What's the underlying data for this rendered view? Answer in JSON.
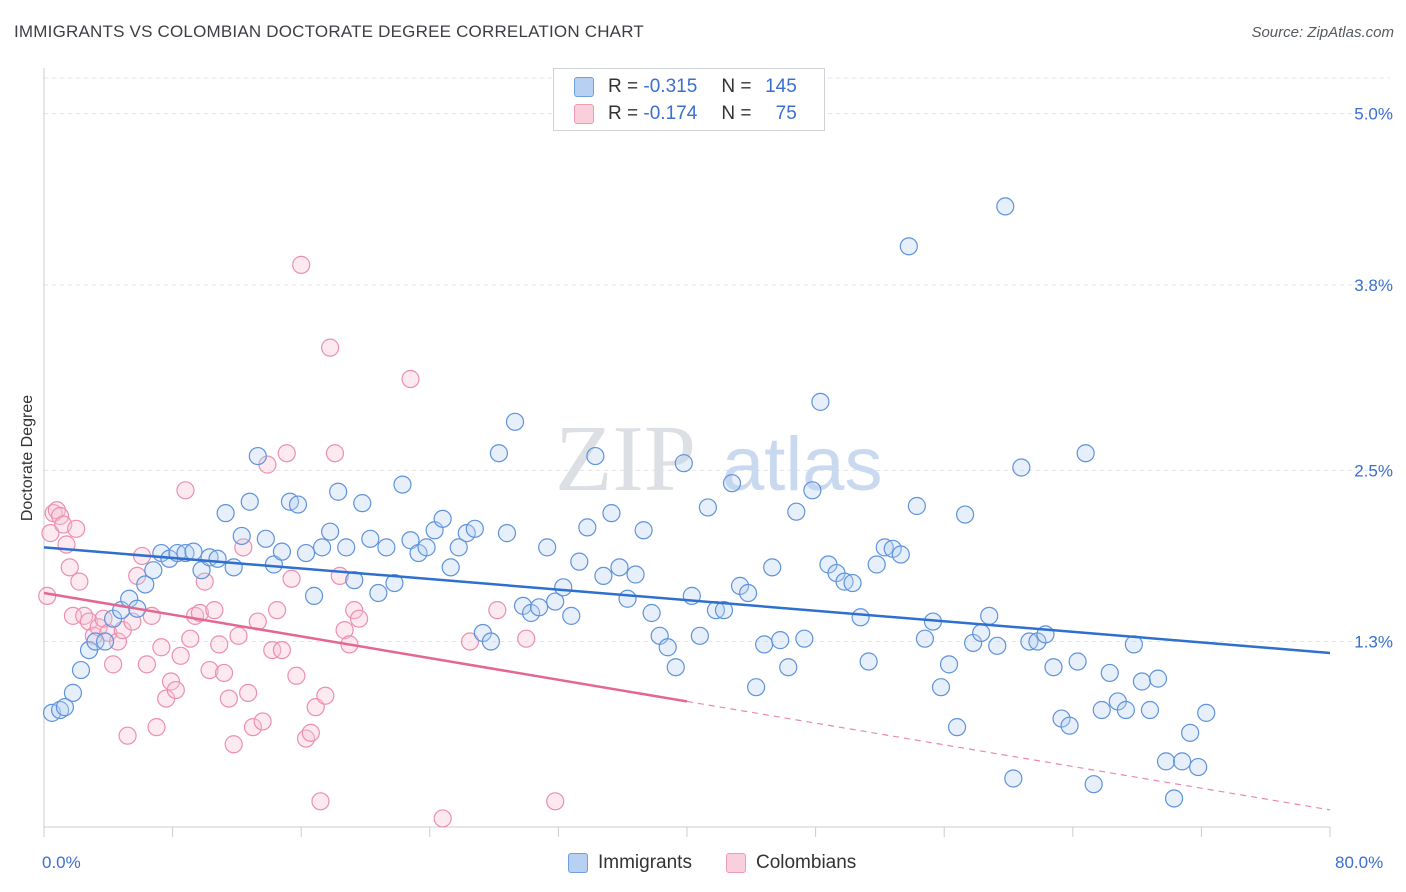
{
  "title": "IMMIGRANTS VS COLOMBIAN DOCTORATE DEGREE CORRELATION CHART",
  "source": "Source: ZipAtlas.com",
  "watermark": {
    "zip": "ZIP",
    "atlas": "atlas"
  },
  "legend": {
    "rows": [
      {
        "r_label": "R =",
        "r_value": "-0.315",
        "n_label": "N =",
        "n_value": "145",
        "color": "#6f9fe0"
      },
      {
        "r_label": "R =",
        "r_value": "-0.174",
        "n_label": "N =",
        "n_value": "75",
        "color": "#f09ab5"
      }
    ]
  },
  "bottom_legend": [
    {
      "label": "Immigrants",
      "color": "#6f9fe0"
    },
    {
      "label": "Colombians",
      "color": "#f09ab5"
    }
  ],
  "chart_data": {
    "type": "scatter",
    "ylabel": "Doctorate Degree",
    "xlim": [
      0,
      80
    ],
    "ylim": [
      0,
      5.25
    ],
    "x_tick_labels": [
      "0.0%",
      "80.0%"
    ],
    "y_ticks": [
      1.3,
      2.5,
      3.8,
      5.0
    ],
    "y_tick_labels": [
      "1.3%",
      "2.5%",
      "3.8%",
      "5.0%"
    ],
    "series": [
      {
        "name": "Immigrants",
        "color": "#6f9fe0",
        "trend": {
          "x": [
            0,
            80
          ],
          "y": [
            1.96,
            1.22
          ]
        },
        "points": [
          [
            0.5,
            0.8
          ],
          [
            1.0,
            0.82
          ],
          [
            1.3,
            0.84
          ],
          [
            1.8,
            0.94
          ],
          [
            2.3,
            1.1
          ],
          [
            2.8,
            1.24
          ],
          [
            3.2,
            1.3
          ],
          [
            3.8,
            1.3
          ],
          [
            4.3,
            1.46
          ],
          [
            4.8,
            1.52
          ],
          [
            5.3,
            1.6
          ],
          [
            5.8,
            1.53
          ],
          [
            6.3,
            1.7
          ],
          [
            6.8,
            1.8
          ],
          [
            7.3,
            1.92
          ],
          [
            7.8,
            1.88
          ],
          [
            8.3,
            1.92
          ],
          [
            8.8,
            1.92
          ],
          [
            9.3,
            1.93
          ],
          [
            9.8,
            1.8
          ],
          [
            10.3,
            1.89
          ],
          [
            10.8,
            1.88
          ],
          [
            11.3,
            2.2
          ],
          [
            11.8,
            1.82
          ],
          [
            12.3,
            2.04
          ],
          [
            12.8,
            2.28
          ],
          [
            13.3,
            2.6
          ],
          [
            13.8,
            2.02
          ],
          [
            14.3,
            1.84
          ],
          [
            14.8,
            1.93
          ],
          [
            15.3,
            2.28
          ],
          [
            15.8,
            2.26
          ],
          [
            16.3,
            1.92
          ],
          [
            16.8,
            1.62
          ],
          [
            17.3,
            1.96
          ],
          [
            17.8,
            2.07
          ],
          [
            18.3,
            2.35
          ],
          [
            18.8,
            1.96
          ],
          [
            19.3,
            1.73
          ],
          [
            19.8,
            2.27
          ],
          [
            20.3,
            2.02
          ],
          [
            20.8,
            1.64
          ],
          [
            21.3,
            1.96
          ],
          [
            21.8,
            1.71
          ],
          [
            22.3,
            2.4
          ],
          [
            22.8,
            2.01
          ],
          [
            23.3,
            1.92
          ],
          [
            23.8,
            1.96
          ],
          [
            24.3,
            2.08
          ],
          [
            24.8,
            2.16
          ],
          [
            25.3,
            1.82
          ],
          [
            25.8,
            1.96
          ],
          [
            26.3,
            2.06
          ],
          [
            26.8,
            2.09
          ],
          [
            27.3,
            1.36
          ],
          [
            27.8,
            1.3
          ],
          [
            28.3,
            2.62
          ],
          [
            28.8,
            2.06
          ],
          [
            29.3,
            2.84
          ],
          [
            29.8,
            1.55
          ],
          [
            30.3,
            1.5
          ],
          [
            30.8,
            1.54
          ],
          [
            31.3,
            1.96
          ],
          [
            31.8,
            1.58
          ],
          [
            32.3,
            1.68
          ],
          [
            32.8,
            1.48
          ],
          [
            33.3,
            1.86
          ],
          [
            33.8,
            2.1
          ],
          [
            34.3,
            2.6
          ],
          [
            34.8,
            1.76
          ],
          [
            35.3,
            2.2
          ],
          [
            35.8,
            1.82
          ],
          [
            36.3,
            1.6
          ],
          [
            36.8,
            1.77
          ],
          [
            37.3,
            2.08
          ],
          [
            37.8,
            1.5
          ],
          [
            38.3,
            1.34
          ],
          [
            38.8,
            1.26
          ],
          [
            39.3,
            1.12
          ],
          [
            39.8,
            2.55
          ],
          [
            40.3,
            1.62
          ],
          [
            40.8,
            1.34
          ],
          [
            41.3,
            2.24
          ],
          [
            41.8,
            1.52
          ],
          [
            42.3,
            1.52
          ],
          [
            42.8,
            2.41
          ],
          [
            43.3,
            1.69
          ],
          [
            43.8,
            1.64
          ],
          [
            44.3,
            0.98
          ],
          [
            44.8,
            1.28
          ],
          [
            45.3,
            1.82
          ],
          [
            45.8,
            1.31
          ],
          [
            46.3,
            1.12
          ],
          [
            46.8,
            2.21
          ],
          [
            47.3,
            1.32
          ],
          [
            47.8,
            2.36
          ],
          [
            48.3,
            2.98
          ],
          [
            48.8,
            1.84
          ],
          [
            49.3,
            1.78
          ],
          [
            49.8,
            1.72
          ],
          [
            50.3,
            1.71
          ],
          [
            50.8,
            1.47
          ],
          [
            51.3,
            1.16
          ],
          [
            51.8,
            1.84
          ],
          [
            52.3,
            1.96
          ],
          [
            52.8,
            1.95
          ],
          [
            53.3,
            1.91
          ],
          [
            53.8,
            4.07
          ],
          [
            54.3,
            2.25
          ],
          [
            54.8,
            1.32
          ],
          [
            55.3,
            1.44
          ],
          [
            55.8,
            0.98
          ],
          [
            56.3,
            1.14
          ],
          [
            56.8,
            0.7
          ],
          [
            57.3,
            2.19
          ],
          [
            57.8,
            1.29
          ],
          [
            58.3,
            1.36
          ],
          [
            58.8,
            1.48
          ],
          [
            59.3,
            1.27
          ],
          [
            59.8,
            4.35
          ],
          [
            60.3,
            0.34
          ],
          [
            60.8,
            2.52
          ],
          [
            61.3,
            1.3
          ],
          [
            61.8,
            1.3
          ],
          [
            62.3,
            1.35
          ],
          [
            62.8,
            1.12
          ],
          [
            63.3,
            0.76
          ],
          [
            63.8,
            0.71
          ],
          [
            64.3,
            1.16
          ],
          [
            64.8,
            2.62
          ],
          [
            65.3,
            0.3
          ],
          [
            65.8,
            0.82
          ],
          [
            66.3,
            1.08
          ],
          [
            66.8,
            0.88
          ],
          [
            67.3,
            0.82
          ],
          [
            67.8,
            1.28
          ],
          [
            68.3,
            1.02
          ],
          [
            68.8,
            0.82
          ],
          [
            69.3,
            1.04
          ],
          [
            69.8,
            0.46
          ],
          [
            70.3,
            0.2
          ],
          [
            70.8,
            0.46
          ],
          [
            71.3,
            0.66
          ],
          [
            71.8,
            0.42
          ],
          [
            72.3,
            0.8
          ]
        ]
      },
      {
        "name": "Colombians",
        "color": "#f09ab5",
        "trend": {
          "x": [
            0,
            40
          ],
          "y": [
            1.64,
            0.88
          ]
        },
        "trend_dashed": {
          "x": [
            40,
            80
          ],
          "y": [
            0.88,
            0.12
          ]
        },
        "points": [
          [
            0.2,
            1.62
          ],
          [
            0.4,
            2.06
          ],
          [
            0.6,
            2.2
          ],
          [
            0.8,
            2.22
          ],
          [
            1.0,
            2.18
          ],
          [
            1.2,
            2.12
          ],
          [
            1.4,
            1.98
          ],
          [
            1.6,
            1.82
          ],
          [
            1.8,
            1.48
          ],
          [
            2.0,
            2.09
          ],
          [
            2.2,
            1.72
          ],
          [
            2.5,
            1.48
          ],
          [
            2.8,
            1.44
          ],
          [
            3.1,
            1.34
          ],
          [
            3.4,
            1.4
          ],
          [
            3.7,
            1.46
          ],
          [
            4.0,
            1.36
          ],
          [
            4.3,
            1.14
          ],
          [
            4.6,
            1.3
          ],
          [
            4.9,
            1.38
          ],
          [
            5.2,
            0.64
          ],
          [
            5.5,
            1.44
          ],
          [
            5.8,
            1.76
          ],
          [
            6.1,
            1.9
          ],
          [
            6.4,
            1.14
          ],
          [
            6.7,
            1.48
          ],
          [
            7.0,
            0.7
          ],
          [
            7.3,
            1.26
          ],
          [
            7.6,
            0.9
          ],
          [
            7.9,
            1.02
          ],
          [
            8.2,
            0.96
          ],
          [
            8.5,
            1.2
          ],
          [
            8.8,
            2.36
          ],
          [
            9.1,
            1.32
          ],
          [
            9.4,
            1.48
          ],
          [
            9.7,
            1.5
          ],
          [
            10.0,
            1.72
          ],
          [
            10.3,
            1.1
          ],
          [
            10.6,
            1.52
          ],
          [
            10.9,
            1.28
          ],
          [
            11.2,
            1.08
          ],
          [
            11.5,
            0.9
          ],
          [
            11.8,
            0.58
          ],
          [
            12.1,
            1.34
          ],
          [
            12.4,
            1.96
          ],
          [
            12.7,
            0.94
          ],
          [
            13.0,
            0.7
          ],
          [
            13.3,
            1.44
          ],
          [
            13.6,
            0.74
          ],
          [
            13.9,
            2.54
          ],
          [
            14.2,
            1.24
          ],
          [
            14.5,
            1.52
          ],
          [
            14.8,
            1.24
          ],
          [
            15.1,
            2.62
          ],
          [
            15.4,
            1.74
          ],
          [
            15.7,
            1.06
          ],
          [
            16.0,
            3.94
          ],
          [
            16.3,
            0.62
          ],
          [
            16.6,
            0.66
          ],
          [
            16.9,
            0.84
          ],
          [
            17.2,
            0.18
          ],
          [
            17.5,
            0.92
          ],
          [
            17.8,
            3.36
          ],
          [
            18.1,
            2.62
          ],
          [
            18.4,
            1.76
          ],
          [
            18.7,
            1.38
          ],
          [
            19.0,
            1.28
          ],
          [
            19.3,
            1.52
          ],
          [
            19.6,
            1.46
          ],
          [
            22.8,
            3.14
          ],
          [
            24.8,
            0.06
          ],
          [
            26.5,
            1.3
          ],
          [
            28.2,
            1.52
          ],
          [
            30.0,
            1.32
          ],
          [
            31.8,
            0.18
          ]
        ]
      }
    ]
  }
}
